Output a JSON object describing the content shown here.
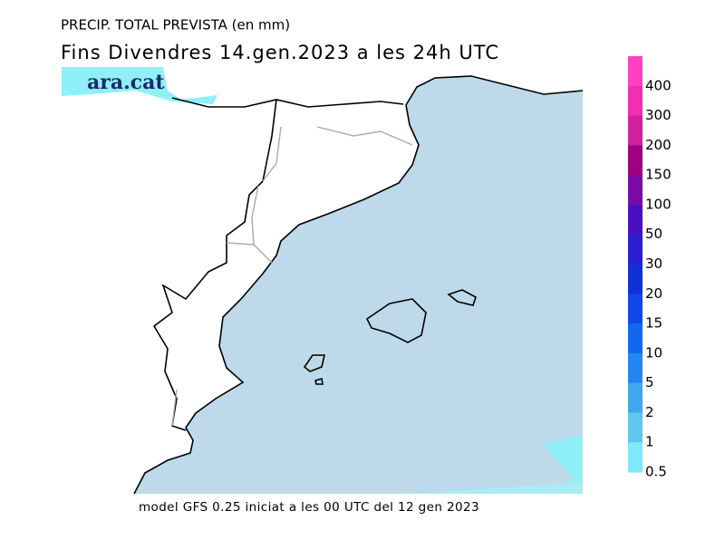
{
  "header": {
    "title": "PRECIP. TOTAL PREVISTA (en mm)",
    "subtitle": "Fins Divendres 14.gen.2023 a les 24h UTC",
    "logo": "ara.cat"
  },
  "footer": "model GFS 0.25 iniciat a les 00 UTC del 12 gen 2023",
  "legend": {
    "labels": [
      "400",
      "300",
      "200",
      "150",
      "100",
      "50",
      "30",
      "20",
      "15",
      "10",
      "5",
      "2",
      "1",
      "0.5"
    ],
    "colors": [
      "#ff40c0",
      "#f030b0",
      "#d020a0",
      "#a00080",
      "#7a0aa8",
      "#4a10c0",
      "#2a20d0",
      "#1030d8",
      "#1048e8",
      "#1068f0",
      "#2088f0",
      "#40a8f0",
      "#60c8f0",
      "#80e8f8"
    ]
  }
}
